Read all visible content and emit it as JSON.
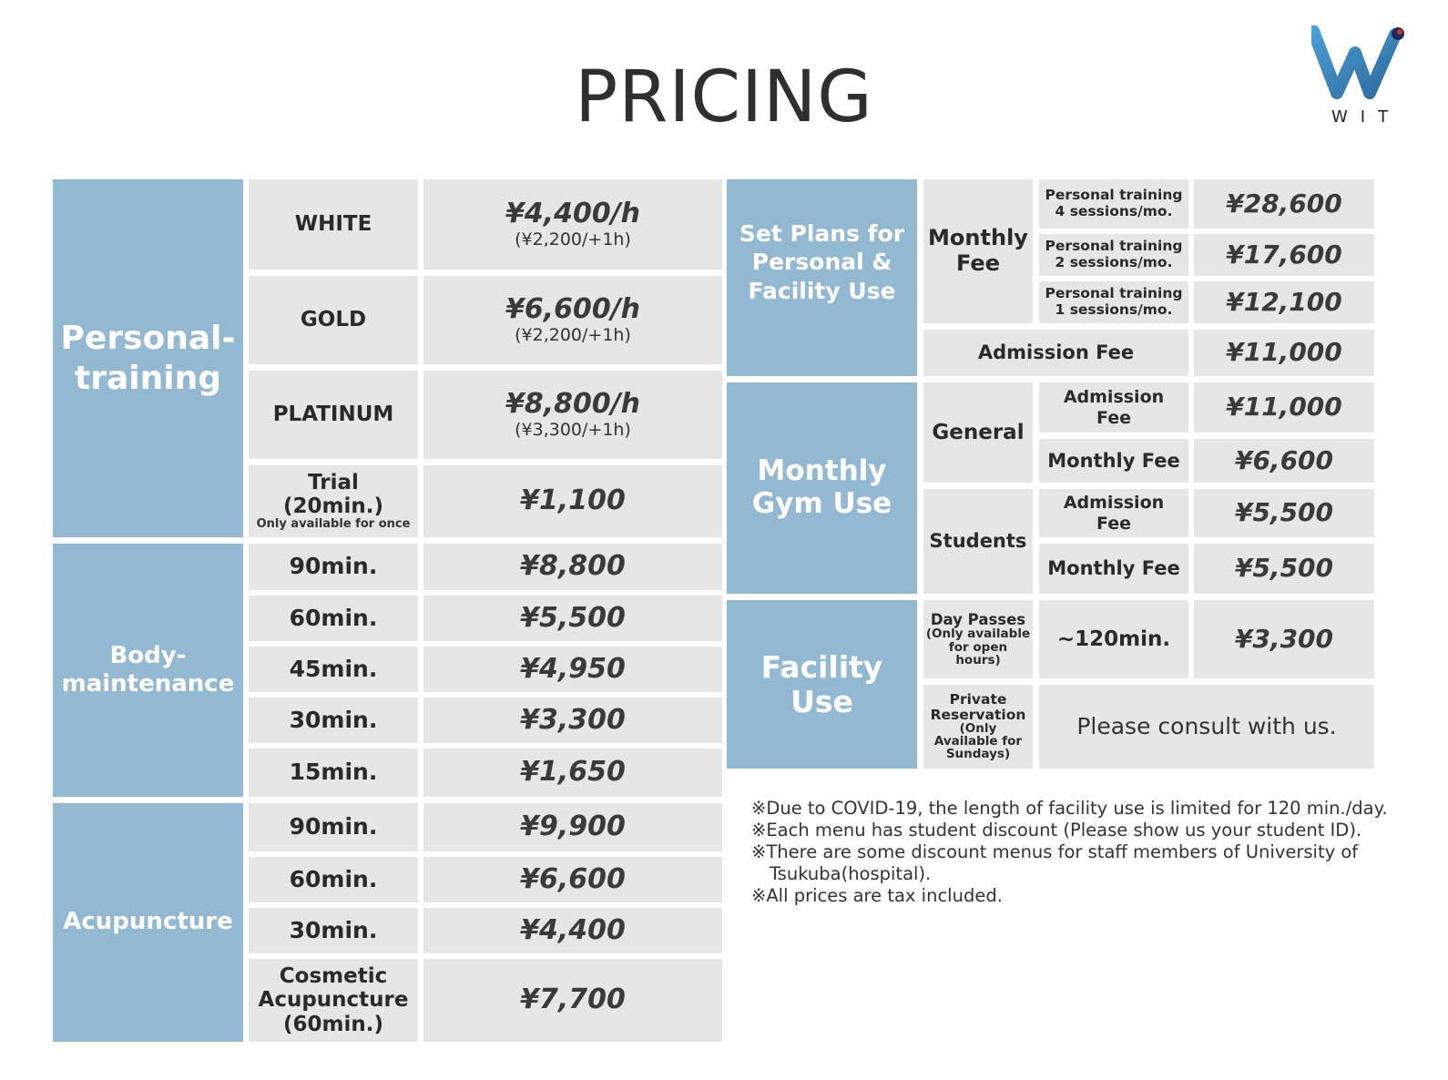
{
  "title": "PRICING",
  "logo": {
    "text": "WIT"
  },
  "colors": {
    "category_bg": "#93b8d2",
    "cell_bg": "#e6e6e6"
  },
  "personal_training": {
    "label": "Personal-\ntraining",
    "rows": [
      {
        "name": "WHITE",
        "price": "¥4,400/h",
        "extra": "(¥2,200/+1h)"
      },
      {
        "name": "GOLD",
        "price": "¥6,600/h",
        "extra": "(¥2,200/+1h)"
      },
      {
        "name": "PLATINUM",
        "price": "¥8,800/h",
        "extra": "(¥3,300/+1h)"
      },
      {
        "name": "Trial\n(20min.)",
        "note": "Only available for once",
        "price": "¥1,100"
      }
    ]
  },
  "body_maintenance": {
    "label": "Body-\nmaintenance",
    "rows": [
      {
        "name": "90min.",
        "price": "¥8,800"
      },
      {
        "name": "60min.",
        "price": "¥5,500"
      },
      {
        "name": "45min.",
        "price": "¥4,950"
      },
      {
        "name": "30min.",
        "price": "¥3,300"
      },
      {
        "name": "15min.",
        "price": "¥1,650"
      }
    ]
  },
  "acupuncture": {
    "label": "Acupuncture",
    "rows": [
      {
        "name": "90min.",
        "price": "¥9,900"
      },
      {
        "name": "60min.",
        "price": "¥6,600"
      },
      {
        "name": "30min.",
        "price": "¥4,400"
      },
      {
        "name": "Cosmetic\nAcupuncture\n(60min.)",
        "price": "¥7,700"
      }
    ]
  },
  "set_plans": {
    "label": "Set Plans for\nPersonal &\nFacility Use",
    "monthly_fee_label": "Monthly\nFee",
    "rows": [
      {
        "name": "Personal training\n4 sessions/mo.",
        "price": "¥28,600"
      },
      {
        "name": "Personal training\n2 sessions/mo.",
        "price": "¥17,600"
      },
      {
        "name": "Personal training\n1 sessions/mo.",
        "price": "¥12,100"
      }
    ],
    "admission_label": "Admission Fee",
    "admission_price": "¥11,000"
  },
  "monthly_gym": {
    "label": "Monthly\nGym Use",
    "general": {
      "label": "General",
      "admission_label": "Admission\nFee",
      "admission_price": "¥11,000",
      "monthly_label": "Monthly Fee",
      "monthly_price": "¥6,600"
    },
    "students": {
      "label": "Students",
      "admission_label": "Admission\nFee",
      "admission_price": "¥5,500",
      "monthly_label": "Monthly Fee",
      "monthly_price": "¥5,500"
    }
  },
  "facility": {
    "label": "Facility\nUse",
    "day_pass_label": "Day Passes",
    "day_pass_note": "(Only available\nfor open\nhours)",
    "day_pass_duration": "~120min.",
    "day_pass_price": "¥3,300",
    "private_label": "Private\nReservation",
    "private_note": "(Only\nAvailable for\nSundays)",
    "private_text": "Please consult with us."
  },
  "notes": [
    "※Due to COVID-19, the length of facility use is limited for 120 min./day.",
    "※Each menu has student discount (Please show us your student ID).",
    "※There are some discount menus for staff members of University of Tsukuba(hospital).",
    "※All prices are tax included."
  ]
}
